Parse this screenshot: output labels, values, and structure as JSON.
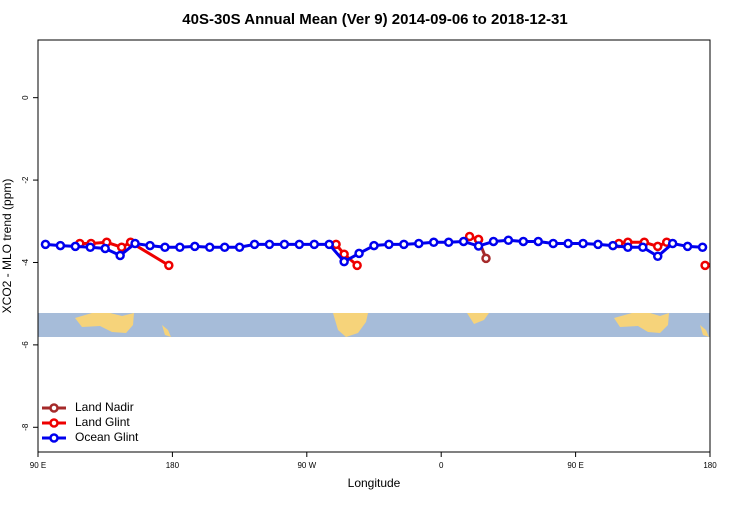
{
  "chart_data": {
    "type": "line",
    "title": "40S-30S Annual Mean (Ver 9)   2014-09-06 to 2018-12-31",
    "xlabel": "Longitude",
    "ylabel": "XCO2 - MLO trend (ppm)",
    "xlim": [
      90,
      540
    ],
    "xticks": [
      {
        "value": 90,
        "label": "90 E"
      },
      180,
      {
        "value": 270,
        "label": "90 W"
      },
      {
        "value": 360,
        "label": "0"
      },
      {
        "value": 450,
        "label": "90 E"
      },
      {
        "value": 540,
        "label": "180"
      }
    ],
    "ylim": [
      -8.6,
      1.4
    ],
    "yticks": [
      0,
      -2,
      -4,
      -6,
      -8
    ],
    "legend": "bottom-left",
    "series": [
      {
        "name": "Land Nadir",
        "color": "#a52a2a",
        "x": [
          385,
          390
        ],
        "values": [
          -3.45,
          -3.9
        ]
      },
      {
        "name": "Land Glint",
        "color": "#ee0000",
        "x": [
          118,
          125.5,
          136,
          146,
          152,
          177.6,
          null,
          289.6,
          295,
          303.7,
          null,
          379,
          385,
          null,
          479,
          485,
          496,
          505,
          511,
          null,
          536.7
        ],
        "values": [
          -3.54,
          -3.54,
          -3.51,
          -3.63,
          -3.51,
          -4.07,
          null,
          -3.56,
          -3.8,
          -4.07,
          null,
          -3.37,
          -3.44,
          null,
          -3.54,
          -3.51,
          -3.51,
          -3.61,
          -3.51,
          null,
          -4.07
        ]
      },
      {
        "name": "Ocean Glint",
        "color": "#0000ee",
        "x": [
          95,
          105,
          115,
          125,
          135,
          145,
          155,
          165,
          175,
          185,
          195,
          205,
          215,
          225,
          235,
          245,
          255,
          265,
          275,
          285,
          295,
          305,
          315,
          325,
          335,
          345,
          355,
          365,
          375,
          385,
          395,
          405,
          415,
          425,
          435,
          445,
          455,
          465,
          475,
          485,
          495,
          505,
          515,
          525,
          535
        ],
        "values": [
          -3.56,
          -3.59,
          -3.61,
          -3.63,
          -3.66,
          -3.83,
          -3.54,
          -3.59,
          -3.63,
          -3.63,
          -3.61,
          -3.63,
          -3.63,
          -3.63,
          -3.56,
          -3.56,
          -3.56,
          -3.56,
          -3.56,
          -3.56,
          -3.98,
          -3.78,
          -3.59,
          -3.56,
          -3.56,
          -3.54,
          -3.51,
          -3.51,
          -3.49,
          -3.6,
          -3.49,
          -3.46,
          -3.49,
          -3.49,
          -3.54,
          -3.54,
          -3.54,
          -3.56,
          -3.59,
          -3.63,
          -3.63,
          -3.85,
          -3.54,
          -3.61,
          -3.63
        ]
      }
    ]
  }
}
